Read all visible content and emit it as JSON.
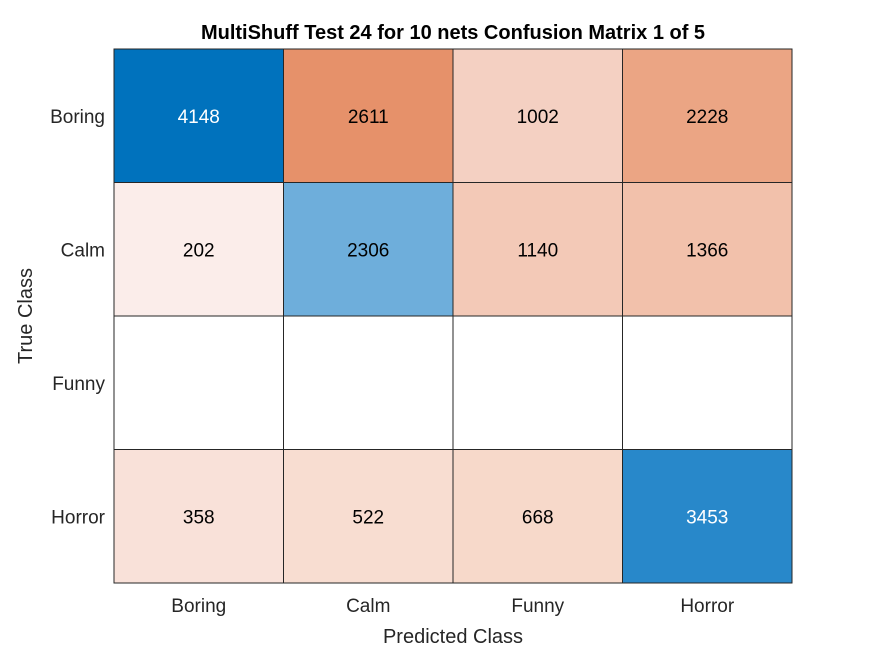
{
  "chart_data": {
    "type": "heatmap",
    "title": "MultiShuff Test 24 for 10 nets Confusion Matrix 1 of 5",
    "xlabel": "Predicted Class",
    "ylabel": "True Class",
    "x_categories": [
      "Boring",
      "Calm",
      "Funny",
      "Horror"
    ],
    "y_categories": [
      "Boring",
      "Calm",
      "Funny",
      "Horror"
    ],
    "values": [
      [
        4148,
        2611,
        1002,
        2228
      ],
      [
        202,
        2306,
        1140,
        1366
      ],
      [
        null,
        null,
        null,
        null
      ],
      [
        358,
        522,
        668,
        3453
      ]
    ],
    "cell_colors": [
      [
        "#0072bd",
        "#e6916a",
        "#f4d0c2",
        "#eba584"
      ],
      [
        "#fbedea",
        "#6eaedb",
        "#f3c9b7",
        "#f2c1ab"
      ],
      [
        "#ffffff",
        "#ffffff",
        "#ffffff",
        "#ffffff"
      ],
      [
        "#f9e1d9",
        "#f8ddd1",
        "#f7d9ca",
        "#2888ca"
      ]
    ],
    "text_colors": [
      [
        "#ffffff",
        "#000000",
        "#000000",
        "#000000"
      ],
      [
        "#000000",
        "#000000",
        "#000000",
        "#000000"
      ],
      [
        "#000000",
        "#000000",
        "#000000",
        "#000000"
      ],
      [
        "#000000",
        "#000000",
        "#000000",
        "#ffffff"
      ]
    ],
    "grid": true
  }
}
